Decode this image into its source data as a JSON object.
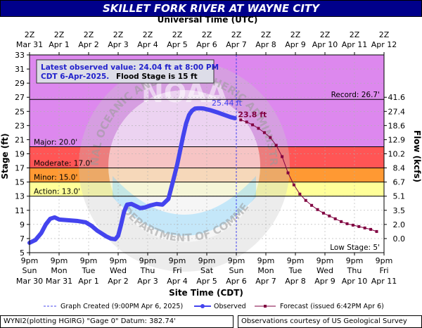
{
  "title": "SKILLET FORK RIVER AT WAYNE CITY",
  "top_axis_title": "Universal Time (UTC)",
  "bottom_axis_title": "Site Time (CDT)",
  "left_axis_title": "Stage (ft)",
  "right_axis_title": "Flow (kcfs)",
  "info_box": {
    "line1": "Latest observed value: 24.04 ft at 8:00 PM",
    "line2_a": "CDT 6-Apr-2025.",
    "line2_b": "Flood Stage is 15 ft"
  },
  "legend": {
    "graph_created": "Graph Created (9:00PM Apr 6, 2025)",
    "observed": "Observed",
    "forecast": "Forecast (issued 6:42PM Apr 6)"
  },
  "footer": {
    "left": "WYNI2(plotting HGIRG) \"Gage 0\" Datum: 382.74'",
    "right": "Observations courtesy of US Geological Survey"
  },
  "watermark_text": {
    "top": "NATIONAL OCEANIC AND ATMOSPHERIC ADMINISTRATION",
    "bottom": "U.S. DEPARTMENT OF COMMERCE",
    "center": "NOAA"
  },
  "colors": {
    "title_bg": "#00008b",
    "observed": "#4444ee",
    "forecast": "#800040",
    "record_zone": "#dd88ee",
    "major_zone": "#ff5555",
    "moderate_zone": "#ff9933",
    "minor_zone": "#ffee55",
    "action_zone": "#ffff99",
    "normal_zone": "#ffffff"
  },
  "chart_data": {
    "type": "line",
    "y_left": {
      "min": 5,
      "max": 33,
      "ticks": [
        "5",
        "7",
        "9",
        "11",
        "13",
        "15",
        "17",
        "19",
        "21",
        "23",
        "25",
        "27",
        "29",
        "31",
        "33"
      ]
    },
    "y_right_ticks": [
      {
        "stage": 7,
        "label": "0.0"
      },
      {
        "stage": 9,
        "label": "2.0"
      },
      {
        "stage": 11,
        "label": "3.5"
      },
      {
        "stage": 13,
        "label": "5.1"
      },
      {
        "stage": 15,
        "label": "6.7"
      },
      {
        "stage": 17,
        "label": "8.4"
      },
      {
        "stage": 19,
        "label": "10.2"
      },
      {
        "stage": 21,
        "label": "12.9"
      },
      {
        "stage": 23,
        "label": "18.6"
      },
      {
        "stage": 25,
        "label": "27.4"
      },
      {
        "stage": 27,
        "label": "41.6"
      }
    ],
    "x_bottom_ticks": [
      {
        "day": 0,
        "line1": "9pm",
        "line2": "Sun",
        "line3": "Mar 30"
      },
      {
        "day": 1,
        "line1": "9pm",
        "line2": "Mon",
        "line3": "Mar 31"
      },
      {
        "day": 2,
        "line1": "9pm",
        "line2": "Tue",
        "line3": "Apr 1"
      },
      {
        "day": 3,
        "line1": "9pm",
        "line2": "Wed",
        "line3": "Apr 2"
      },
      {
        "day": 4,
        "line1": "9pm",
        "line2": "Thu",
        "line3": "Apr 3"
      },
      {
        "day": 5,
        "line1": "9pm",
        "line2": "Fri",
        "line3": "Apr 4"
      },
      {
        "day": 6,
        "line1": "9pm",
        "line2": "Sat",
        "line3": "Apr 5"
      },
      {
        "day": 7,
        "line1": "9pm",
        "line2": "Sun",
        "line3": "Apr 6"
      },
      {
        "day": 8,
        "line1": "9pm",
        "line2": "Mon",
        "line3": "Apr 7"
      },
      {
        "day": 9,
        "line1": "9pm",
        "line2": "Tue",
        "line3": "Apr 8"
      },
      {
        "day": 10,
        "line1": "9pm",
        "line2": "Wed",
        "line3": "Apr 9"
      },
      {
        "day": 11,
        "line1": "9pm",
        "line2": "Thu",
        "line3": "Apr 10"
      },
      {
        "day": 12,
        "line1": "9pm",
        "line2": "Fri",
        "line3": "Apr 11"
      }
    ],
    "x_top_ticks": [
      {
        "day": 0,
        "line1": "2Z",
        "line2": "Mar 31"
      },
      {
        "day": 1,
        "line1": "2Z",
        "line2": "Apr 1"
      },
      {
        "day": 2,
        "line1": "2Z",
        "line2": "Apr 2"
      },
      {
        "day": 3,
        "line1": "2Z",
        "line2": "Apr 3"
      },
      {
        "day": 4,
        "line1": "2Z",
        "line2": "Apr 4"
      },
      {
        "day": 5,
        "line1": "2Z",
        "line2": "Apr 5"
      },
      {
        "day": 6,
        "line1": "2Z",
        "line2": "Apr 6"
      },
      {
        "day": 7,
        "line1": "2Z",
        "line2": "Apr 7"
      },
      {
        "day": 8,
        "line1": "2Z",
        "line2": "Apr 8"
      },
      {
        "day": 9,
        "line1": "2Z",
        "line2": "Apr 9"
      },
      {
        "day": 10,
        "line1": "2Z",
        "line2": "Apr 10"
      },
      {
        "day": 11,
        "line1": "2Z",
        "line2": "Apr 11"
      },
      {
        "day": 12,
        "line1": "2Z",
        "line2": "Apr 12"
      }
    ],
    "x_range": [
      0,
      12
    ],
    "thresholds": [
      {
        "name": "Record",
        "value": 26.7,
        "label": "Record: 26.7'"
      },
      {
        "name": "Major",
        "value": 20.0,
        "label": "Major: 20.0'"
      },
      {
        "name": "Moderate",
        "value": 17.0,
        "label": "Moderate: 17.0'"
      },
      {
        "name": "Minor",
        "value": 15.0,
        "label": "Minor: 15.0'"
      },
      {
        "name": "Action",
        "value": 13.0,
        "label": "Action: 13.0'"
      }
    ],
    "low_stage_label": "Low Stage: 5'",
    "graph_created_day": 7.0,
    "annotations": [
      {
        "text": "25.44 ft",
        "day": 6.25,
        "stage": 25.44
      },
      {
        "text": "23.8 ft",
        "day": 7.15,
        "stage": 23.8
      }
    ],
    "observed": {
      "day": [
        0.0,
        0.2,
        0.4,
        0.55,
        0.7,
        0.85,
        1.0,
        1.3,
        1.6,
        1.9,
        2.1,
        2.3,
        2.45,
        2.6,
        2.75,
        2.9,
        3.0,
        3.1,
        3.2,
        3.3,
        3.45,
        3.6,
        3.75,
        3.9,
        4.1,
        4.3,
        4.5,
        4.7,
        4.85,
        5.0,
        5.1,
        5.2,
        5.3,
        5.4,
        5.5,
        5.6,
        5.7,
        5.8,
        5.9,
        6.0,
        6.1,
        6.25,
        6.4,
        6.6,
        6.8,
        6.95
      ],
      "stage": [
        6.4,
        6.8,
        7.8,
        9.0,
        9.8,
        10.0,
        9.7,
        9.6,
        9.5,
        9.3,
        8.8,
        8.1,
        7.7,
        7.3,
        7.0,
        6.9,
        7.4,
        9.0,
        10.8,
        11.8,
        11.9,
        11.6,
        11.3,
        11.4,
        11.7,
        11.9,
        11.8,
        12.6,
        15.0,
        17.5,
        19.5,
        21.5,
        23.3,
        24.5,
        25.1,
        25.4,
        25.44,
        25.44,
        25.4,
        25.3,
        25.2,
        25.0,
        24.8,
        24.5,
        24.2,
        24.04
      ]
    },
    "forecast": {
      "day": [
        7.15,
        7.35,
        7.55,
        7.75,
        7.95,
        8.15,
        8.35,
        8.55,
        8.75,
        8.95,
        9.15,
        9.35,
        9.55,
        9.75,
        9.95,
        10.15,
        10.35,
        10.55,
        10.75,
        10.95,
        11.15,
        11.35,
        11.55,
        11.75
      ],
      "stage": [
        23.8,
        23.5,
        23.1,
        22.6,
        22.0,
        21.3,
        20.2,
        18.6,
        16.3,
        14.6,
        13.3,
        12.4,
        11.7,
        11.1,
        10.6,
        10.2,
        9.8,
        9.4,
        9.1,
        8.9,
        8.7,
        8.5,
        8.3,
        8.0
      ]
    }
  }
}
